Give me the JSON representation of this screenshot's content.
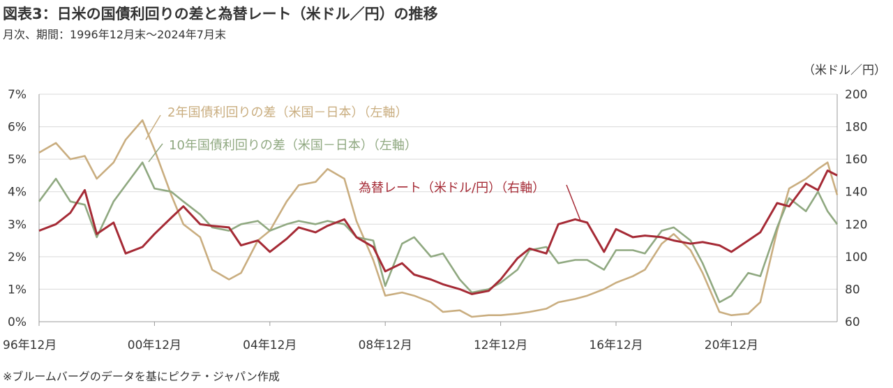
{
  "title": "図表3：日米の国債利回りの差と為替レート（米ドル／円）の推移",
  "subtitle": "月次、期間：1996年12月末～2024年7月末",
  "source": "※ブルームバーグのデータを基にピクテ・ジャパン作成",
  "chart_data": {
    "type": "line",
    "title": "図表3：日米の国債利回りの差と為替レート（米ドル／円）の推移",
    "subtitle": "月次、期間：1996年12月末～2024年7月末",
    "x_range": [
      1996.917,
      2024.583
    ],
    "x_ticks": [
      {
        "value": 1996.917,
        "label": "96年12月"
      },
      {
        "value": 2000.917,
        "label": "00年12月"
      },
      {
        "value": 2004.917,
        "label": "04年12月"
      },
      {
        "value": 2008.917,
        "label": "08年12月"
      },
      {
        "value": 2012.917,
        "label": "12年12月"
      },
      {
        "value": 2016.917,
        "label": "16年12月"
      },
      {
        "value": 2020.917,
        "label": "20年12月"
      }
    ],
    "y_left": {
      "min": 0,
      "max": 7,
      "ticks": [
        "0%",
        "1%",
        "2%",
        "3%",
        "4%",
        "5%",
        "6%",
        "7%"
      ]
    },
    "y_right": {
      "min": 60,
      "max": 200,
      "unit": "（米ドル／円）",
      "ticks": [
        "60",
        "80",
        "100",
        "120",
        "140",
        "160",
        "180",
        "200"
      ]
    },
    "grid": true,
    "colors": {
      "spread2y": "#c9ad7f",
      "spread10y": "#8fa880",
      "fx": "#a52a35",
      "axis": "#999999",
      "grid": "#d9d9d9"
    },
    "series": [
      {
        "name": "2年国債利回りの差（米国－日本）（左軸）",
        "axis": "left",
        "x": [
          1996.917,
          1997.5,
          1998.0,
          1998.5,
          1998.917,
          1999.5,
          1999.917,
          2000.5,
          2000.917,
          2001.5,
          2001.917,
          2002.5,
          2002.917,
          2003.5,
          2003.917,
          2004.5,
          2004.917,
          2005.5,
          2005.917,
          2006.5,
          2006.917,
          2007.5,
          2007.917,
          2008.5,
          2008.917,
          2009.5,
          2009.917,
          2010.5,
          2010.917,
          2011.5,
          2011.917,
          2012.5,
          2012.917,
          2013.5,
          2013.917,
          2014.5,
          2014.917,
          2015.5,
          2015.917,
          2016.5,
          2016.917,
          2017.5,
          2017.917,
          2018.5,
          2018.917,
          2019.5,
          2019.917,
          2020.5,
          2020.917,
          2021.5,
          2021.917,
          2022.5,
          2022.917,
          2023.5,
          2023.917,
          2024.25,
          2024.583
        ],
        "values": [
          5.2,
          5.5,
          5.0,
          5.1,
          4.4,
          4.9,
          5.6,
          6.2,
          5.3,
          3.9,
          3.0,
          2.6,
          1.6,
          1.3,
          1.5,
          2.5,
          2.8,
          3.7,
          4.2,
          4.3,
          4.7,
          4.4,
          3.1,
          1.9,
          0.8,
          0.9,
          0.8,
          0.6,
          0.3,
          0.35,
          0.15,
          0.2,
          0.2,
          0.25,
          0.3,
          0.4,
          0.6,
          0.7,
          0.8,
          1.0,
          1.2,
          1.4,
          1.6,
          2.4,
          2.7,
          2.2,
          1.5,
          0.3,
          0.2,
          0.25,
          0.6,
          2.8,
          4.1,
          4.4,
          4.7,
          4.9,
          3.9
        ]
      },
      {
        "name": "10年国債利回りの差（米国－日本）（左軸）",
        "axis": "left",
        "x": [
          1996.917,
          1997.5,
          1998.0,
          1998.5,
          1998.917,
          1999.5,
          1999.917,
          2000.5,
          2000.917,
          2001.5,
          2001.917,
          2002.5,
          2002.917,
          2003.5,
          2003.917,
          2004.5,
          2004.917,
          2005.5,
          2005.917,
          2006.5,
          2006.917,
          2007.5,
          2007.917,
          2008.5,
          2008.917,
          2009.5,
          2009.917,
          2010.5,
          2010.917,
          2011.5,
          2011.917,
          2012.5,
          2012.917,
          2013.5,
          2013.917,
          2014.5,
          2014.917,
          2015.5,
          2015.917,
          2016.5,
          2016.917,
          2017.5,
          2017.917,
          2018.5,
          2018.917,
          2019.5,
          2019.917,
          2020.5,
          2020.917,
          2021.5,
          2021.917,
          2022.5,
          2022.917,
          2023.5,
          2023.917,
          2024.25,
          2024.583
        ],
        "values": [
          3.7,
          4.4,
          3.7,
          3.6,
          2.6,
          3.7,
          4.2,
          4.9,
          4.1,
          4.0,
          3.7,
          3.3,
          2.9,
          2.8,
          3.0,
          3.1,
          2.8,
          3.0,
          3.1,
          3.0,
          3.1,
          3.0,
          2.6,
          2.5,
          1.1,
          2.4,
          2.6,
          2.0,
          2.1,
          1.3,
          0.9,
          1.0,
          1.2,
          1.6,
          2.2,
          2.3,
          1.8,
          1.9,
          1.9,
          1.6,
          2.2,
          2.2,
          2.1,
          2.8,
          2.9,
          2.5,
          1.8,
          0.6,
          0.8,
          1.5,
          1.4,
          2.9,
          3.8,
          3.4,
          4.0,
          3.4,
          3.0
        ]
      },
      {
        "name": "為替レート（米ドル/円）（右軸）",
        "axis": "right",
        "x": [
          1996.917,
          1997.5,
          1998.0,
          1998.5,
          1998.917,
          1999.5,
          1999.917,
          2000.5,
          2000.917,
          2001.5,
          2001.917,
          2002.5,
          2002.917,
          2003.5,
          2003.917,
          2004.5,
          2004.917,
          2005.5,
          2005.917,
          2006.5,
          2006.917,
          2007.5,
          2007.917,
          2008.5,
          2008.917,
          2009.5,
          2009.917,
          2010.5,
          2010.917,
          2011.5,
          2011.917,
          2012.5,
          2012.917,
          2013.5,
          2013.917,
          2014.5,
          2014.917,
          2015.5,
          2015.917,
          2016.5,
          2016.917,
          2017.5,
          2017.917,
          2018.5,
          2018.917,
          2019.5,
          2019.917,
          2020.5,
          2020.917,
          2021.5,
          2021.917,
          2022.5,
          2022.917,
          2023.5,
          2023.917,
          2024.25,
          2024.583
        ],
        "values": [
          116,
          120,
          127,
          141,
          114,
          121,
          102,
          106,
          114,
          124,
          131,
          120,
          119,
          118,
          107,
          110,
          103,
          111,
          118,
          115,
          119,
          123,
          112,
          106,
          91,
          96,
          89,
          86,
          83,
          80,
          77,
          79,
          86,
          99,
          105,
          102,
          120,
          123,
          121,
          103,
          117,
          112,
          113,
          112,
          110,
          108,
          109,
          107,
          103,
          110,
          115,
          133,
          131,
          145,
          141,
          153,
          150
        ]
      }
    ],
    "annotations": [
      "2年国債利回りの差（米国－日本）（左軸）",
      "10年国債利回りの差（米国－日本）（左軸）",
      "為替レート（米ドル/円）（右軸）"
    ]
  }
}
